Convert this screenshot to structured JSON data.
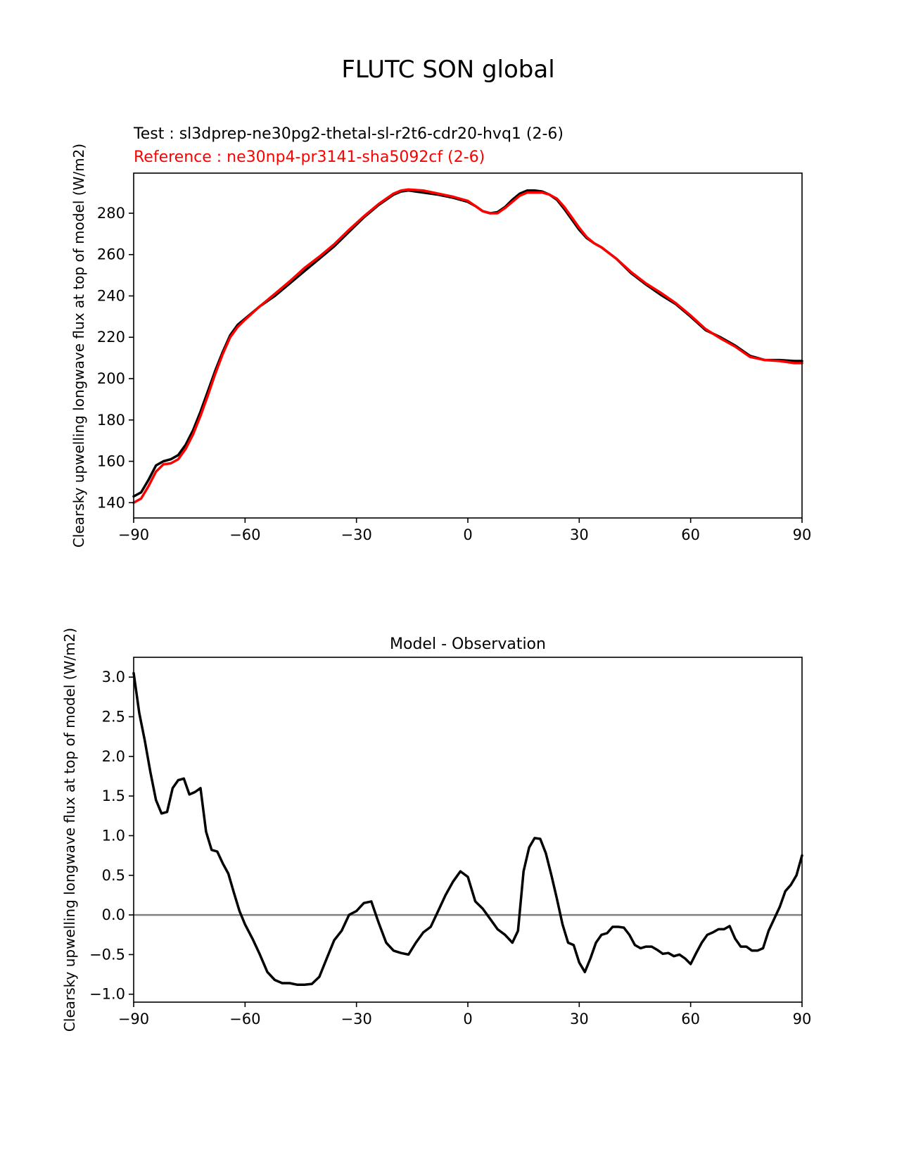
{
  "figure": {
    "title": "FLUTC SON global"
  },
  "chart_data": [
    {
      "type": "line",
      "test_label": "Test : sl3dprep-ne30pg2-thetal-sl-r2t6-cdr20-hvq1 (2-6)",
      "reference_label": "Reference : ne30np4-pr3141-sha5092cf (2-6)",
      "title": "",
      "xlabel": "",
      "ylabel": "Clearsky upwelling longwave flux at top of model (W/m2)",
      "xlim": [
        -90,
        90
      ],
      "ylim": [
        132.6,
        299.4
      ],
      "xticks": [
        -90,
        -60,
        -30,
        0,
        30,
        60,
        90
      ],
      "xtick_labels": [
        "−90",
        "−60",
        "−30",
        "0",
        "30",
        "60",
        "90"
      ],
      "yticks": [
        140,
        160,
        180,
        200,
        220,
        240,
        260,
        280
      ],
      "grid": false,
      "series": [
        {
          "color": "#000000",
          "x": [
            -90,
            -88,
            -86,
            -84,
            -82,
            -80,
            -78,
            -76,
            -74,
            -72,
            -70,
            -68,
            -66,
            -64,
            -62,
            -60,
            -56,
            -52,
            -48,
            -44,
            -40,
            -36,
            -32,
            -28,
            -24,
            -20,
            -18,
            -16,
            -12,
            -8,
            -4,
            0,
            2,
            4,
            6,
            8,
            10,
            12,
            14,
            16,
            18,
            20,
            22,
            24,
            26,
            28,
            30,
            32,
            34,
            36,
            40,
            44,
            48,
            52,
            56,
            60,
            64,
            68,
            72,
            76,
            80,
            84,
            88,
            90
          ],
          "values": [
            143,
            145,
            151,
            158,
            160,
            161,
            163,
            168,
            175,
            184,
            194,
            204,
            213,
            221,
            226,
            229,
            235,
            240,
            246,
            252,
            258,
            264,
            271,
            278,
            284,
            289,
            290.5,
            291,
            290,
            289,
            287.5,
            285.5,
            283.5,
            281,
            280,
            280.5,
            283,
            286.5,
            289.5,
            291,
            291,
            290.5,
            289,
            286.5,
            282,
            277,
            272,
            268,
            265.5,
            263.5,
            258,
            251,
            245.5,
            240.5,
            236,
            230,
            223.5,
            220,
            216,
            211,
            209,
            209,
            208.5,
            208.5
          ]
        },
        {
          "color": "#ff0000",
          "x": [
            -90,
            -88,
            -86,
            -84,
            -82,
            -80,
            -78,
            -76,
            -74,
            -72,
            -70,
            -68,
            -66,
            -64,
            -62,
            -60,
            -56,
            -52,
            -48,
            -44,
            -40,
            -36,
            -32,
            -28,
            -24,
            -20,
            -18,
            -16,
            -12,
            -8,
            -4,
            0,
            2,
            4,
            6,
            8,
            10,
            12,
            14,
            16,
            18,
            20,
            22,
            24,
            26,
            28,
            30,
            32,
            34,
            36,
            40,
            44,
            48,
            52,
            56,
            60,
            64,
            68,
            72,
            76,
            80,
            84,
            88,
            90
          ],
          "values": [
            140,
            142,
            148,
            155,
            158.5,
            159,
            161,
            166,
            173,
            182,
            192,
            202.5,
            212,
            220,
            225,
            228.5,
            235,
            241,
            247,
            253.5,
            259,
            265,
            272,
            278.5,
            284.5,
            289.5,
            291,
            291.5,
            291,
            289.5,
            288,
            286,
            283.5,
            281,
            280,
            280,
            282.5,
            285.5,
            288.5,
            290,
            290,
            290,
            289,
            287,
            283,
            278,
            273,
            268.5,
            265.5,
            263.5,
            258,
            251.5,
            246,
            241.5,
            236.5,
            230.5,
            224,
            219.5,
            215.5,
            210.5,
            209,
            208.5,
            207.5,
            207.5
          ]
        }
      ]
    },
    {
      "type": "line",
      "title": "Model - Observation",
      "xlabel": "",
      "ylabel": "Clearsky upwelling longwave flux at top of model (W/m2)",
      "xlim": [
        -90,
        90
      ],
      "ylim": [
        -1.1,
        3.25
      ],
      "xticks": [
        -90,
        -60,
        -30,
        0,
        30,
        60,
        90
      ],
      "xtick_labels": [
        "−90",
        "−60",
        "−30",
        "0",
        "30",
        "60",
        "90"
      ],
      "yticks": [
        -1.0,
        -0.5,
        0.0,
        0.5,
        1.0,
        1.5,
        2.0,
        2.5,
        3.0
      ],
      "ytick_labels": [
        "−1.0",
        "−0.5",
        "0.0",
        "0.5",
        "1.0",
        "1.5",
        "2.0",
        "2.5",
        "3.0"
      ],
      "grid": false,
      "zero_line_color": "#808080",
      "series": [
        {
          "color": "#000000",
          "x": [
            -90,
            -88.5,
            -87,
            -85.5,
            -84,
            -82.5,
            -81,
            -79.5,
            -78,
            -76.5,
            -75,
            -73.5,
            -72,
            -70.5,
            -69,
            -67.5,
            -66,
            -64.5,
            -63,
            -61.5,
            -60,
            -58,
            -56,
            -54,
            -52,
            -50,
            -48,
            -46,
            -44,
            -42,
            -40,
            -38,
            -36,
            -34,
            -32,
            -30,
            -28,
            -26,
            -24,
            -22,
            -20,
            -18,
            -16,
            -14,
            -12,
            -10,
            -8,
            -6,
            -4,
            -2,
            0,
            2,
            4,
            6,
            8,
            10,
            12,
            13.5,
            15,
            16.5,
            18,
            19.5,
            21,
            22.5,
            24,
            25.5,
            27,
            28.5,
            30,
            31.5,
            33,
            34.5,
            36,
            37.5,
            39,
            40.5,
            42,
            43.5,
            45,
            46.5,
            48,
            49.5,
            51,
            52.5,
            54,
            55.5,
            57,
            58.5,
            60,
            61.5,
            63,
            64.5,
            66,
            67.5,
            69,
            70.5,
            72,
            73.5,
            75,
            76.5,
            78,
            79.5,
            81,
            82.5,
            84,
            85.5,
            87,
            88.5,
            90
          ],
          "values": [
            3.05,
            2.55,
            2.2,
            1.8,
            1.45,
            1.28,
            1.3,
            1.6,
            1.7,
            1.72,
            1.52,
            1.55,
            1.6,
            1.05,
            0.82,
            0.8,
            0.65,
            0.52,
            0.28,
            0.05,
            -0.12,
            -0.3,
            -0.5,
            -0.72,
            -0.82,
            -0.86,
            -0.86,
            -0.88,
            -0.88,
            -0.87,
            -0.78,
            -0.55,
            -0.32,
            -0.2,
            0.0,
            0.05,
            0.15,
            0.17,
            -0.1,
            -0.35,
            -0.45,
            -0.48,
            -0.5,
            -0.35,
            -0.22,
            -0.15,
            0.05,
            0.25,
            0.42,
            0.55,
            0.48,
            0.17,
            0.08,
            -0.05,
            -0.18,
            -0.25,
            -0.35,
            -0.2,
            0.55,
            0.85,
            0.97,
            0.96,
            0.78,
            0.5,
            0.2,
            -0.12,
            -0.35,
            -0.38,
            -0.6,
            -0.72,
            -0.55,
            -0.35,
            -0.25,
            -0.23,
            -0.15,
            -0.15,
            -0.16,
            -0.25,
            -0.38,
            -0.42,
            -0.4,
            -0.4,
            -0.44,
            -0.49,
            -0.48,
            -0.52,
            -0.5,
            -0.55,
            -0.62,
            -0.48,
            -0.35,
            -0.25,
            -0.22,
            -0.18,
            -0.18,
            -0.14,
            -0.3,
            -0.4,
            -0.4,
            -0.45,
            -0.45,
            -0.42,
            -0.2,
            -0.05,
            0.1,
            0.3,
            0.38,
            0.5,
            0.75
          ]
        }
      ]
    }
  ]
}
